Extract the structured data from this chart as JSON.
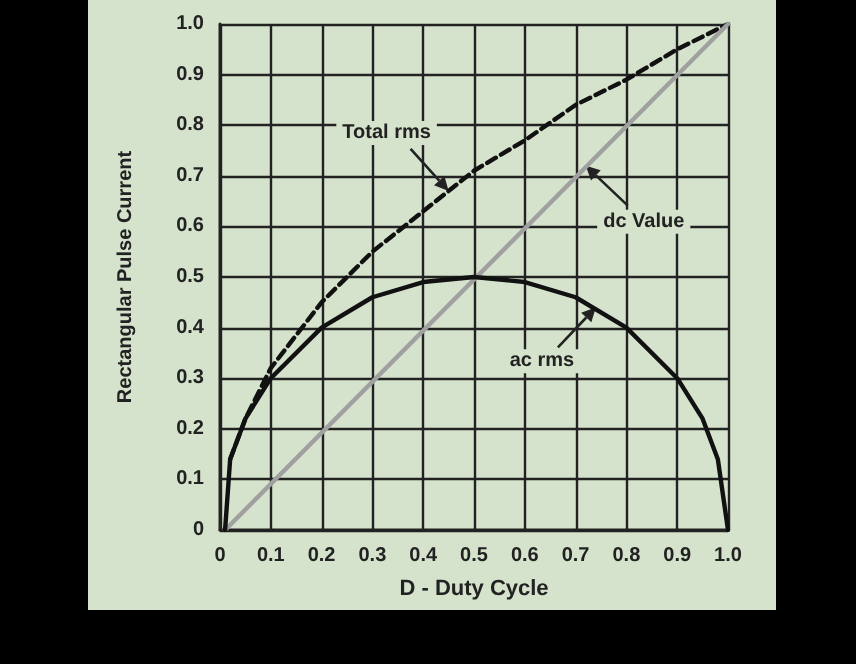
{
  "chart_data": {
    "type": "line",
    "xlabel": "D - Duty Cycle",
    "ylabel": "Rectangular Pulse Current",
    "xlim": [
      0,
      1
    ],
    "ylim": [
      0,
      1
    ],
    "xticks": [
      0,
      0.1,
      0.2,
      0.3,
      0.4,
      0.5,
      0.6,
      0.7,
      0.8,
      0.9,
      {
        "value": 1,
        "label": "1.0"
      }
    ],
    "yticks": [
      0,
      0.1,
      0.2,
      0.3,
      0.4,
      0.5,
      0.6,
      0.7,
      0.8,
      0.9,
      {
        "value": 1,
        "label": "1.0"
      }
    ],
    "grid": true,
    "marker": "none",
    "series": [
      {
        "color": "#111111",
        "line_style": "dashed",
        "x": [
          0.02,
          0.05,
          0.1,
          0.2,
          0.3,
          0.4,
          0.5,
          0.6,
          0.7,
          0.8,
          0.9,
          1.0
        ],
        "values": [
          0.14,
          0.22,
          0.32,
          0.45,
          0.55,
          0.63,
          0.71,
          0.77,
          0.84,
          0.89,
          0.95,
          1.0
        ]
      },
      {
        "color": "#a0a0a0",
        "line_style": "solid",
        "x": [
          0.01,
          1.0
        ],
        "values": [
          0,
          1.0
        ]
      },
      {
        "color": "#111111",
        "line_style": "solid",
        "x": [
          0.01,
          0.02,
          0.05,
          0.1,
          0.2,
          0.3,
          0.4,
          0.5,
          0.6,
          0.7,
          0.8,
          0.9,
          0.95,
          0.98,
          1.0
        ],
        "values": [
          0,
          0.14,
          0.22,
          0.3,
          0.4,
          0.46,
          0.49,
          0.5,
          0.49,
          0.46,
          0.4,
          0.3,
          0.22,
          0.14,
          0
        ]
      }
    ],
    "annotations": [
      {
        "text": "Total rms",
        "x": 0.45,
        "y": 0.67
      },
      {
        "text": "dc Value",
        "x": 0.72,
        "y": 0.72
      },
      {
        "text": "ac rms",
        "x": 0.74,
        "y": 0.44
      }
    ]
  }
}
